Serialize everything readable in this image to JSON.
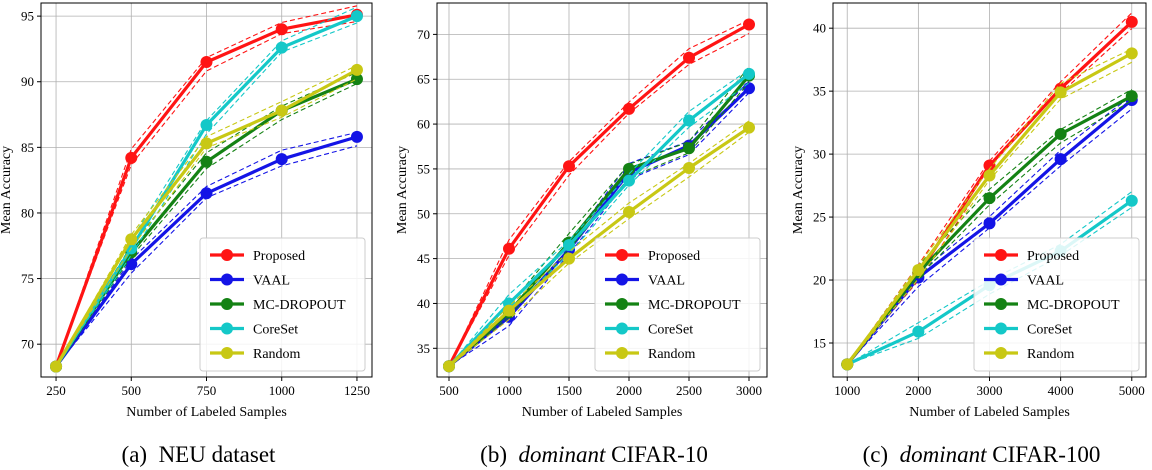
{
  "colors": {
    "Proposed": "#ff1414",
    "VAAL": "#1414e6",
    "MC-DROPOUT": "#148214",
    "CoreSet": "#14c8c8",
    "Random": "#c8c814"
  },
  "chart_data": [
    {
      "type": "line",
      "caption": {
        "prefix": "(a)",
        "italic": "",
        "text": "NEU dataset"
      },
      "xlabel": "Number of Labeled Samples",
      "ylabel": "Mean Accuracy",
      "x": [
        250,
        500,
        750,
        1000,
        1250
      ],
      "xlim": [
        200,
        1300
      ],
      "ylim": [
        67.5,
        96
      ],
      "xticks": [
        250,
        500,
        750,
        1000,
        1250
      ],
      "yticks": [
        70,
        75,
        80,
        85,
        90,
        95
      ],
      "grid": true,
      "legend_position": "lower-right",
      "series": [
        {
          "name": "Proposed",
          "values": [
            68.3,
            84.2,
            91.5,
            94.0,
            95.1
          ]
        },
        {
          "name": "VAAL",
          "values": [
            68.3,
            76.1,
            81.5,
            84.1,
            85.8
          ]
        },
        {
          "name": "MC-DROPOUT",
          "values": [
            68.3,
            77.0,
            83.9,
            87.8,
            90.2
          ]
        },
        {
          "name": "CoreSet",
          "values": [
            68.3,
            77.3,
            86.7,
            92.6,
            95.0
          ]
        },
        {
          "name": "Random",
          "values": [
            68.3,
            78.0,
            85.3,
            87.8,
            90.9
          ]
        }
      ]
    },
    {
      "type": "line",
      "caption": {
        "prefix": "(b)",
        "italic": "dominant",
        "text": "CIFAR-10"
      },
      "xlabel": "Number of Labeled Samples",
      "ylabel": "Mean Accuracy",
      "x": [
        500,
        1000,
        1500,
        2000,
        2500,
        3000
      ],
      "xlim": [
        400,
        3150
      ],
      "ylim": [
        31.8,
        73.5
      ],
      "xticks": [
        500,
        1000,
        1500,
        2000,
        2500,
        3000
      ],
      "yticks": [
        35,
        40,
        45,
        50,
        55,
        60,
        65,
        70
      ],
      "grid": true,
      "legend_position": "lower-right",
      "series": [
        {
          "name": "Proposed",
          "values": [
            33.0,
            46.1,
            55.3,
            61.7,
            67.4,
            71.1
          ]
        },
        {
          "name": "VAAL",
          "values": [
            33.0,
            38.5,
            46.0,
            54.6,
            57.6,
            64.0
          ]
        },
        {
          "name": "MC-DROPOUT",
          "values": [
            33.0,
            39.0,
            46.8,
            55.0,
            57.3,
            65.4
          ]
        },
        {
          "name": "CoreSet",
          "values": [
            33.0,
            40.0,
            46.5,
            53.7,
            60.4,
            65.6
          ]
        },
        {
          "name": "Random",
          "values": [
            33.0,
            39.2,
            45.0,
            50.2,
            55.1,
            59.6
          ]
        }
      ]
    },
    {
      "type": "line",
      "caption": {
        "prefix": "(c)",
        "italic": "dominant",
        "text": "CIFAR-100"
      },
      "xlabel": "Number of Labeled Samples",
      "ylabel": "Mean Accuracy",
      "x": [
        1000,
        2000,
        3000,
        4000,
        5000
      ],
      "xlim": [
        800,
        5200
      ],
      "ylim": [
        12.3,
        42.0
      ],
      "xticks": [
        1000,
        2000,
        3000,
        4000,
        5000
      ],
      "yticks": [
        15,
        20,
        25,
        30,
        35,
        40
      ],
      "grid": true,
      "legend_position": "lower-right",
      "series": [
        {
          "name": "Proposed",
          "values": [
            13.3,
            20.5,
            29.1,
            35.2,
            40.5
          ]
        },
        {
          "name": "VAAL",
          "values": [
            13.3,
            20.2,
            24.5,
            29.6,
            34.3
          ]
        },
        {
          "name": "MC-DROPOUT",
          "values": [
            13.3,
            20.6,
            26.5,
            31.6,
            34.6
          ]
        },
        {
          "name": "CoreSet",
          "values": [
            13.3,
            15.9,
            19.6,
            22.3,
            26.3
          ]
        },
        {
          "name": "Random",
          "values": [
            13.3,
            20.8,
            28.3,
            34.9,
            38.0
          ]
        }
      ]
    }
  ]
}
